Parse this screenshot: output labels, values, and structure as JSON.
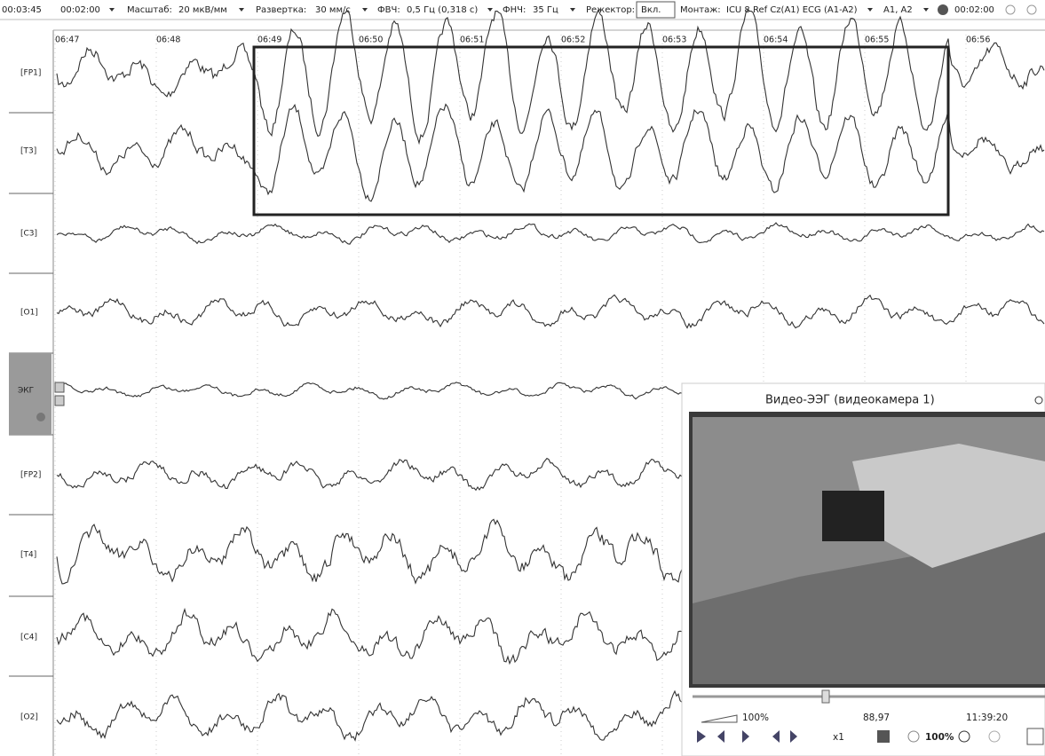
{
  "toolbar": {
    "elapsed": "00:03:45",
    "window": "00:02:00",
    "scale_label": "Масштаб:",
    "scale": "20 мкВ/мм",
    "sweep_label": "Развертка:",
    "sweep": "30 мм/с",
    "hpf_label": "ФВЧ:",
    "hpf": "0,5 Гц (0,318 с)",
    "lpf_label": "ФНЧ:",
    "lpf": "35 Гц",
    "notch_label": "Режектор:",
    "notch": "Вкл.",
    "montage_label": "Монтаж:",
    "montage": "ICU 8 Ref Cz(A1) ECG (A1-A2)",
    "reference": "A1, A2",
    "timer": "00:02:00"
  },
  "time_axis": [
    "06:47",
    "06:48",
    "06:49",
    "06:50",
    "06:51",
    "06:52",
    "06:53",
    "06:54",
    "06:55",
    "06:56"
  ],
  "channels": [
    "[FP1]",
    "[T3]",
    "[C3]",
    "[O1]",
    "ЭКГ",
    "[FP2]",
    "[T4]",
    "[C4]",
    "[O2]"
  ],
  "video": {
    "title": "Видео-ЭЭГ (видеокамера 1)",
    "volume": "100%",
    "position": "88,97",
    "clock": "11:39:20",
    "speed": "x1",
    "zoom": "100%"
  }
}
